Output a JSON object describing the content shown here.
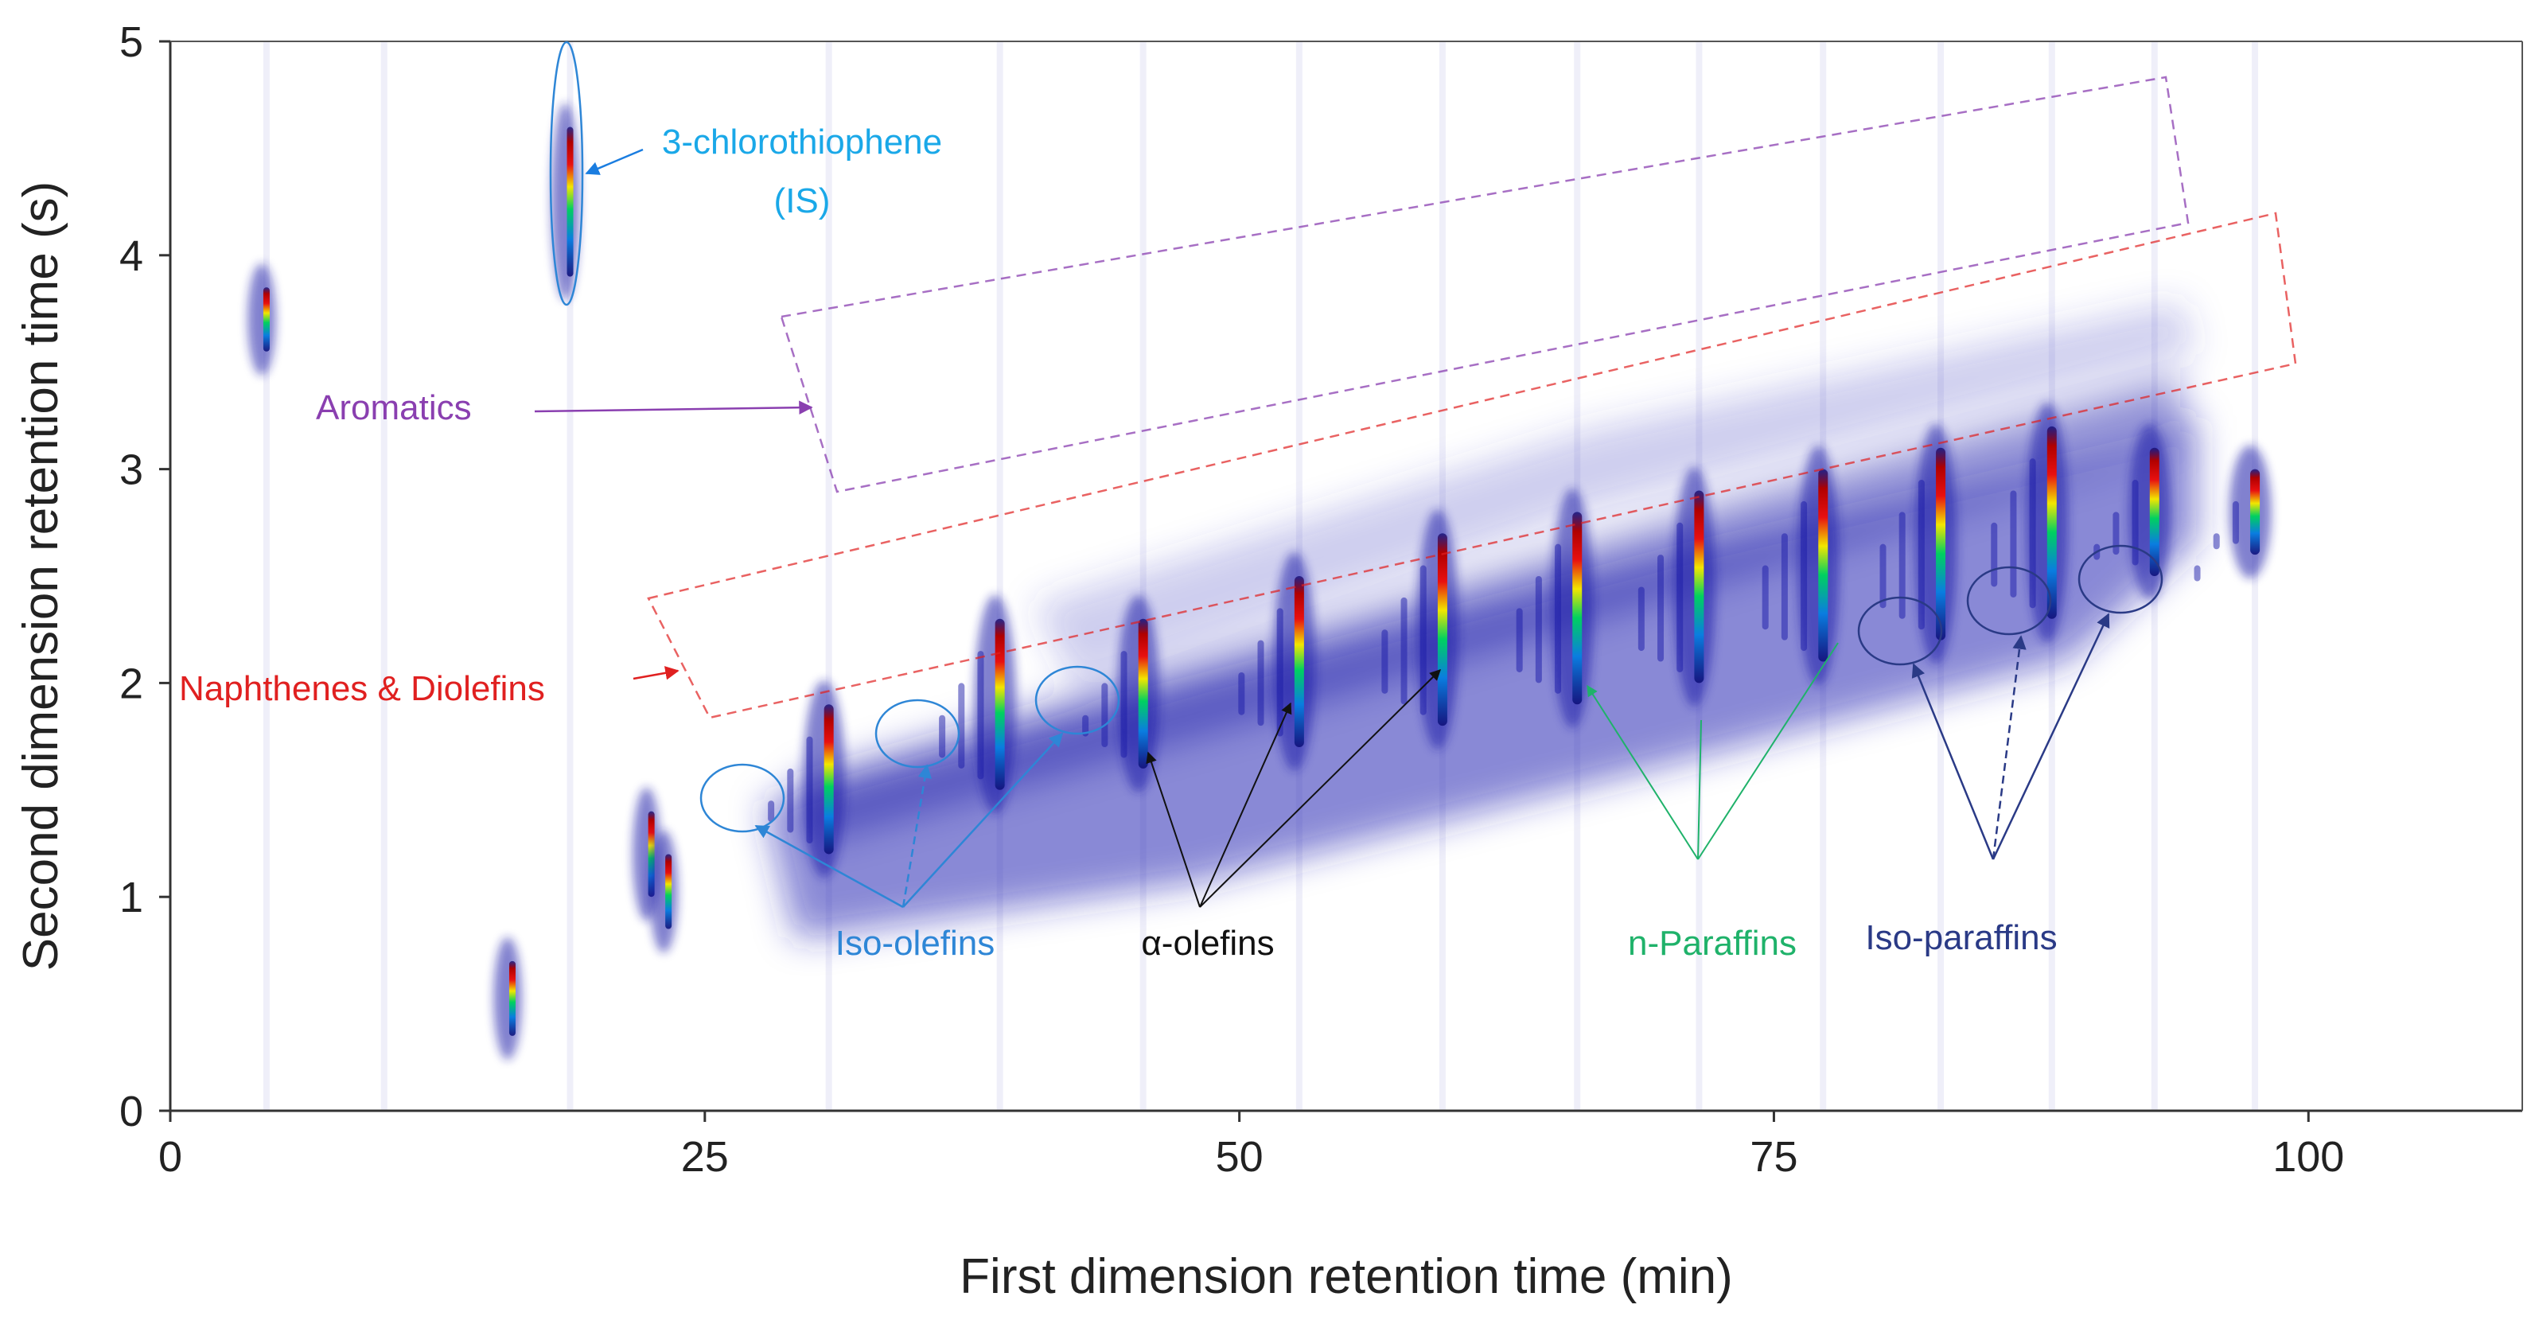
{
  "chart_data": {
    "type": "heatmap",
    "title": "",
    "xlabel": "First dimension retention time (min)",
    "ylabel": "Second dimension retention time (s)",
    "xlim": [
      0,
      110
    ],
    "ylim": [
      0,
      5
    ],
    "xticks": [
      0,
      25,
      50,
      75,
      100
    ],
    "yticks": [
      0,
      1,
      2,
      3,
      4,
      5
    ],
    "colors": {
      "iso_olefins": "#2e86d6",
      "alpha_olefins": "#111111",
      "n_paraffins": "#1fb26a",
      "iso_paraffins": "#2a3a86",
      "aromatics": "#8a3fb0",
      "naphthenes": "#e02020",
      "internal_standard": "#1aa8e8",
      "low": "#1a1aa8"
    },
    "annotations": [
      {
        "key": "is_label",
        "line1": "3-chlorothiophene",
        "line2": "(IS)",
        "color": "#1aa8e8"
      },
      {
        "key": "aromatics",
        "text": "Aromatics",
        "color": "#8a3fb0"
      },
      {
        "key": "naphthenes",
        "text": "Naphthenes & Diolefins",
        "color": "#e02020"
      },
      {
        "key": "iso_olefins",
        "text": "Iso-olefins",
        "color": "#2e86d6"
      },
      {
        "key": "alpha_olefins",
        "text": "α-olefins",
        "color": "#111111"
      },
      {
        "key": "n_paraffins",
        "text": "n-Paraffins",
        "color": "#1fb26a"
      },
      {
        "key": "iso_paraffins",
        "text": "Iso-paraffins",
        "color": "#2a3a86"
      }
    ],
    "n_paraffin_peaks": [
      {
        "x": 30.8,
        "y_low": 1.2,
        "y_high": 1.9
      },
      {
        "x": 38.8,
        "y_low": 1.5,
        "y_high": 2.3
      },
      {
        "x": 45.5,
        "y_low": 1.6,
        "y_high": 2.3
      },
      {
        "x": 52.8,
        "y_low": 1.7,
        "y_high": 2.5
      },
      {
        "x": 59.5,
        "y_low": 1.8,
        "y_high": 2.7
      },
      {
        "x": 65.8,
        "y_low": 1.9,
        "y_high": 2.8
      },
      {
        "x": 71.5,
        "y_low": 2.0,
        "y_high": 2.9
      },
      {
        "x": 77.3,
        "y_low": 2.1,
        "y_high": 3.0
      },
      {
        "x": 82.8,
        "y_low": 2.2,
        "y_high": 3.1
      },
      {
        "x": 88.0,
        "y_low": 2.3,
        "y_high": 3.2
      },
      {
        "x": 92.8,
        "y_low": 2.5,
        "y_high": 3.1
      },
      {
        "x": 97.5,
        "y_low": 2.6,
        "y_high": 3.0
      }
    ],
    "other_peaks": [
      {
        "x": 4.5,
        "y_low": 3.55,
        "y_high": 3.85
      },
      {
        "x": 18.7,
        "y_low": 3.9,
        "y_high": 4.6
      },
      {
        "x": 22.5,
        "y_low": 1.0,
        "y_high": 1.4
      },
      {
        "x": 23.3,
        "y_low": 0.85,
        "y_high": 1.2
      },
      {
        "x": 16.0,
        "y_low": 0.35,
        "y_high": 0.7
      }
    ]
  }
}
